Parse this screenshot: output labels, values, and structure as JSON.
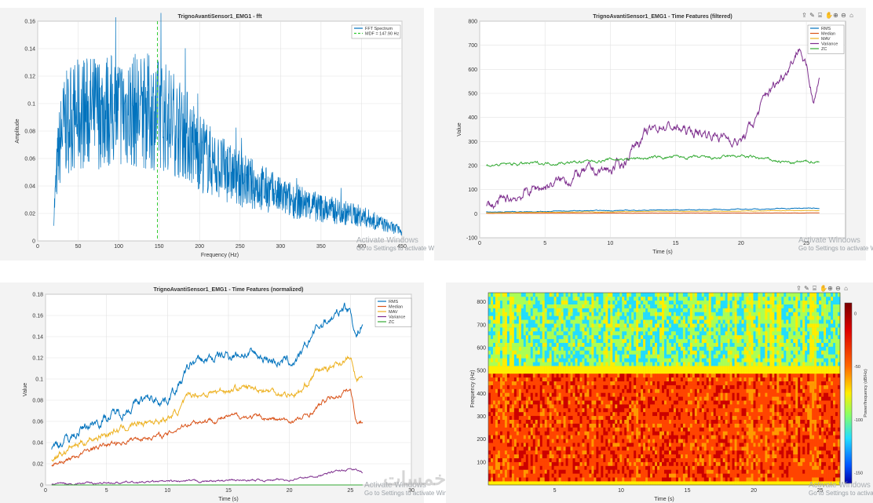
{
  "watermark": {
    "title": "Activate Windows",
    "line": "Go to Settings to activate Windows.",
    "logo": "خمسات"
  },
  "toolbar_icons": [
    "export-icon",
    "brush-icon",
    "datatip-icon",
    "pan-icon",
    "zoom-in-icon",
    "zoom-out-icon",
    "home-icon"
  ],
  "charts": [
    {
      "id": "fft",
      "type": "line",
      "title": "TrignoAvantiSensor1_EMG1 - fft",
      "xlabel": "Frequency (Hz)",
      "ylabel": "Amplitude",
      "xlim": [
        0,
        450
      ],
      "ylim": [
        0,
        0.16
      ],
      "xticks": [
        0,
        50,
        100,
        150,
        200,
        250,
        300,
        350,
        400,
        450
      ],
      "yticks": [
        0,
        0.02,
        0.04,
        0.06,
        0.08,
        0.1,
        0.12,
        0.14,
        0.16
      ],
      "legend": [
        "FFT Spectrum",
        "MDF = 147.90 Hz"
      ],
      "legend_colors": [
        "#0072bd",
        "#33cc33"
      ],
      "mdf": 147.9,
      "envelope_x": [
        20,
        25,
        30,
        40,
        60,
        80,
        100,
        120,
        140,
        160,
        180,
        200,
        220,
        250,
        280,
        300,
        350,
        400,
        450
      ],
      "envelope_y": [
        0.02,
        0.06,
        0.08,
        0.09,
        0.093,
        0.095,
        0.095,
        0.095,
        0.094,
        0.09,
        0.08,
        0.065,
        0.055,
        0.045,
        0.038,
        0.032,
        0.024,
        0.018,
        0.007
      ]
    },
    {
      "id": "time_filtered",
      "type": "line",
      "title": "TrignoAvantiSensor1_EMG1 - Time Features (filtered)",
      "xlabel": "Time (s)",
      "ylabel": "Value",
      "xlim": [
        0,
        28
      ],
      "ylim": [
        -100,
        800
      ],
      "xticks": [
        0,
        5,
        10,
        15,
        20,
        25
      ],
      "yticks": [
        -100,
        0,
        100,
        200,
        300,
        400,
        500,
        600,
        700,
        800
      ],
      "legend": [
        "RMS",
        "Median",
        "MAV",
        "Variance",
        "ZC"
      ],
      "legend_colors": [
        "#0072bd",
        "#d95319",
        "#edb120",
        "#7e2f8e",
        "#33aa33"
      ],
      "series": [
        {
          "name": "RMS",
          "x": [
            0.5,
            5,
            10,
            15,
            20,
            22,
            25,
            26
          ],
          "values": [
            7,
            10,
            13,
            16,
            18,
            20,
            23,
            22
          ]
        },
        {
          "name": "Median",
          "x": [
            0.5,
            26
          ],
          "values": [
            2,
            3
          ]
        },
        {
          "name": "MAV",
          "x": [
            0.5,
            5,
            10,
            15,
            20,
            26
          ],
          "values": [
            4,
            6,
            8,
            10,
            11,
            13
          ]
        },
        {
          "name": "Variance",
          "x": [
            0.5,
            2,
            4,
            6,
            8,
            10,
            11,
            12,
            14,
            16,
            18,
            20,
            21,
            22,
            23,
            24,
            24.5,
            25,
            25.5,
            26
          ],
          "values": [
            30,
            50,
            100,
            130,
            170,
            180,
            210,
            300,
            370,
            340,
            330,
            300,
            380,
            500,
            560,
            650,
            700,
            600,
            480,
            570
          ]
        },
        {
          "name": "ZC",
          "x": [
            0.5,
            2,
            5,
            8,
            10,
            12,
            15,
            18,
            20,
            22,
            24,
            26
          ],
          "values": [
            200,
            205,
            210,
            215,
            225,
            230,
            235,
            230,
            240,
            225,
            210,
            220
          ]
        }
      ]
    },
    {
      "id": "time_normalized",
      "type": "line",
      "title": "TrignoAvantiSensor1_EMG1 - Time Features (normalized)",
      "xlabel": "Time (s)",
      "ylabel": "Value",
      "xlim": [
        0,
        30
      ],
      "ylim": [
        0,
        0.18
      ],
      "xticks": [
        0,
        5,
        10,
        15,
        20,
        25,
        30
      ],
      "yticks": [
        0,
        0.02,
        0.04,
        0.06,
        0.08,
        0.1,
        0.12,
        0.14,
        0.16,
        0.18
      ],
      "legend": [
        "RMS",
        "Median",
        "MAV",
        "Variance",
        "ZC"
      ],
      "legend_colors": [
        "#0072bd",
        "#d95319",
        "#edb120",
        "#7e2f8e",
        "#33aa33"
      ],
      "series": [
        {
          "name": "RMS",
          "x": [
            0.5,
            2,
            4,
            6,
            8,
            10,
            11,
            12,
            14,
            16,
            18,
            20,
            21,
            22,
            23,
            24,
            24.5,
            25,
            25.5,
            26
          ],
          "values": [
            0.035,
            0.045,
            0.06,
            0.068,
            0.08,
            0.082,
            0.095,
            0.115,
            0.12,
            0.125,
            0.12,
            0.115,
            0.12,
            0.145,
            0.155,
            0.16,
            0.17,
            0.165,
            0.14,
            0.155
          ]
        },
        {
          "name": "Median",
          "x": [
            0.5,
            2,
            4,
            6,
            8,
            10,
            11,
            12,
            14,
            16,
            18,
            20,
            21,
            22,
            23,
            24,
            25,
            25.5,
            26
          ],
          "values": [
            0.018,
            0.025,
            0.035,
            0.04,
            0.045,
            0.047,
            0.055,
            0.06,
            0.062,
            0.065,
            0.063,
            0.06,
            0.062,
            0.07,
            0.08,
            0.085,
            0.09,
            0.06,
            0.06
          ]
        },
        {
          "name": "MAV",
          "x": [
            0.5,
            2,
            4,
            6,
            8,
            10,
            11,
            12,
            14,
            16,
            18,
            20,
            21,
            22,
            23,
            24,
            25,
            25.5,
            26
          ],
          "values": [
            0.025,
            0.035,
            0.045,
            0.052,
            0.06,
            0.062,
            0.072,
            0.085,
            0.088,
            0.092,
            0.09,
            0.085,
            0.088,
            0.105,
            0.11,
            0.115,
            0.12,
            0.098,
            0.1
          ]
        },
        {
          "name": "Variance",
          "x": [
            0.5,
            5,
            10,
            15,
            20,
            22,
            24,
            25,
            26
          ],
          "values": [
            0.001,
            0.002,
            0.003,
            0.004,
            0.005,
            0.008,
            0.013,
            0.015,
            0.012
          ]
        },
        {
          "name": "ZC",
          "x": [
            0.5,
            26
          ],
          "values": [
            0,
            0
          ]
        }
      ]
    },
    {
      "id": "spectrogram",
      "type": "heatmap",
      "title": "",
      "xlabel": "Time (s)",
      "ylabel": "Frequency (Hz)",
      "colorbar_label": "Power/frequency (dB/Hz)",
      "xlim": [
        0,
        26.5
      ],
      "ylim": [
        0,
        840
      ],
      "xticks": [
        5,
        10,
        15,
        20,
        25
      ],
      "yticks": [
        100,
        200,
        300,
        400,
        500,
        600,
        700,
        800
      ],
      "colorbar_ticks": [
        0,
        -50,
        -100,
        -150
      ],
      "colorbar_lim": [
        -160,
        10
      ],
      "band_edge_hz": 500
    }
  ]
}
